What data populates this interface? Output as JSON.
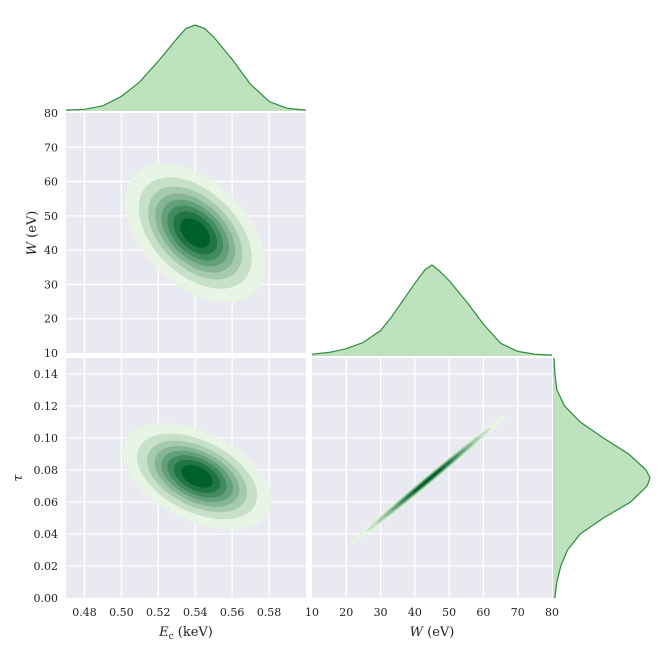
{
  "chart_data": {
    "type": "kde-corner",
    "colors": {
      "panel_bg": "#e9e9f1",
      "grid": "#ffffff",
      "line": "#2e8b3e",
      "fill": "#a8d7a8",
      "density_low": "#e8f5e4",
      "density_high": "#00602a"
    },
    "variables": {
      "Ec": {
        "label": "E_c (keV)",
        "label_main": "E",
        "label_sub": "c",
        "label_unit": " (keV)",
        "range": [
          0.47,
          0.6
        ],
        "ticks": [
          0.48,
          0.5,
          0.52,
          0.54,
          0.56,
          0.58
        ],
        "tick_labels": [
          "0.48",
          "0.50",
          "0.52",
          "0.54",
          "0.56",
          "0.58"
        ]
      },
      "W": {
        "label": "W (eV)",
        "label_main": "W",
        "label_unit": " (eV)",
        "range": [
          10,
          80
        ],
        "ticks": [
          10,
          20,
          30,
          40,
          50,
          60,
          70,
          80
        ],
        "tick_labels": [
          "10",
          "20",
          "30",
          "40",
          "50",
          "60",
          "70",
          "80"
        ]
      },
      "tau": {
        "label": "τ",
        "label_main": "τ",
        "range": [
          0,
          0.15
        ],
        "ticks": [
          0,
          0.02,
          0.04,
          0.06,
          0.08,
          0.1,
          0.12,
          0.14
        ],
        "tick_labels": [
          "0.00",
          "0.02",
          "0.04",
          "0.06",
          "0.08",
          "0.10",
          "0.12",
          "0.14"
        ]
      }
    },
    "marginals": [
      {
        "variable": "Ec",
        "orientation": "horizontal",
        "x": [
          0.47,
          0.48,
          0.49,
          0.5,
          0.51,
          0.52,
          0.53,
          0.535,
          0.54,
          0.545,
          0.55,
          0.56,
          0.57,
          0.58,
          0.59,
          0.6
        ],
        "density": [
          0.01,
          0.02,
          0.06,
          0.17,
          0.34,
          0.58,
          0.84,
          0.96,
          1.0,
          0.96,
          0.86,
          0.6,
          0.31,
          0.11,
          0.03,
          0.01
        ]
      },
      {
        "variable": "W",
        "orientation": "horizontal",
        "x": [
          10,
          15,
          20,
          25,
          30,
          33,
          36,
          40,
          43,
          45,
          47,
          50,
          55,
          60,
          65,
          70,
          75,
          80
        ],
        "density": [
          0.02,
          0.04,
          0.08,
          0.15,
          0.28,
          0.42,
          0.58,
          0.8,
          0.95,
          1.0,
          0.94,
          0.83,
          0.6,
          0.35,
          0.14,
          0.05,
          0.02,
          0.01
        ]
      },
      {
        "variable": "tau",
        "orientation": "vertical",
        "x": [
          0.0,
          0.01,
          0.02,
          0.03,
          0.04,
          0.05,
          0.06,
          0.07,
          0.075,
          0.08,
          0.09,
          0.1,
          0.11,
          0.12,
          0.13,
          0.14,
          0.15
        ],
        "density": [
          0.02,
          0.04,
          0.08,
          0.15,
          0.28,
          0.52,
          0.8,
          0.97,
          1.0,
          0.96,
          0.78,
          0.52,
          0.28,
          0.12,
          0.04,
          0.02,
          0.01
        ]
      }
    ],
    "joint": [
      {
        "x": "Ec",
        "y": "W",
        "mean": [
          0.54,
          45
        ],
        "sd": [
          0.016,
          8.5
        ],
        "corr": -0.45
      },
      {
        "x": "Ec",
        "y": "tau",
        "mean": [
          0.541,
          0.076
        ],
        "sd": [
          0.017,
          0.014
        ],
        "corr": -0.45
      },
      {
        "x": "W",
        "y": "tau",
        "mean": [
          44,
          0.074
        ],
        "sd": [
          9.5,
          0.017
        ],
        "corr": 0.995
      }
    ],
    "contour_levels": [
      0.06,
      0.16,
      0.28,
      0.4,
      0.52,
      0.64,
      0.76,
      0.88
    ],
    "grid": true
  }
}
